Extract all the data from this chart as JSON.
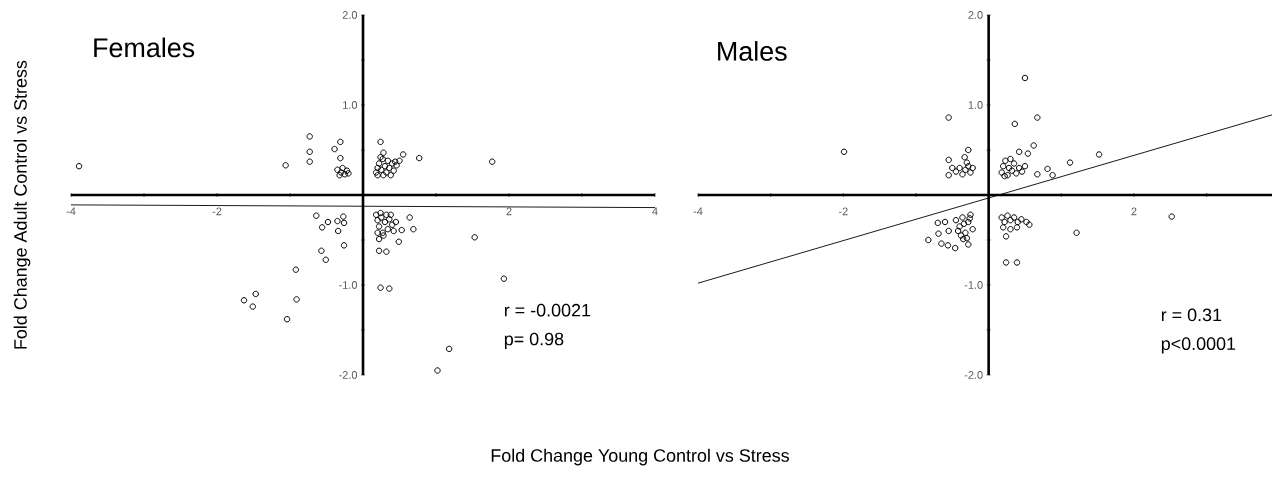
{
  "chart_data": [
    {
      "type": "scatter",
      "title": "Females",
      "xlabel": "Fold Change Young Control vs Stress",
      "ylabel": "Fold Change Adult Control vs Stress",
      "xlim": [
        -4,
        4
      ],
      "ylim": [
        -2,
        2
      ],
      "xticks": [
        -4,
        {
          "value": -3,
          "label": null
        },
        -2,
        {
          "value": -1,
          "label": null
        },
        {
          "value": 1,
          "label": null
        },
        2,
        {
          "value": 3,
          "label": null
        },
        4
      ],
      "yticks": [
        {
          "value": -2,
          "label": "-2.0"
        },
        {
          "value": -1.5,
          "label": null
        },
        {
          "value": -1,
          "label": "-1.0"
        },
        {
          "value": -0.5,
          "label": null
        },
        {
          "value": 0.5,
          "label": null
        },
        {
          "value": 1,
          "label": "1.0"
        },
        {
          "value": 1.5,
          "label": null
        },
        {
          "value": 2,
          "label": "2.0"
        }
      ],
      "annotations": [
        "r = -0.0021",
        "p= 0.98"
      ],
      "series": [
        {
          "marker": "circle",
          "color": "#000000",
          "x": [
            -3.89,
            -1.06,
            -0.73,
            -0.73,
            -0.73,
            -0.31,
            -0.39,
            -0.31,
            -0.35,
            -0.3,
            -0.25,
            -0.22,
            -0.28,
            -0.2,
            -0.32,
            0.24,
            0.28,
            0.18,
            0.2,
            0.22,
            0.25,
            0.27,
            0.3,
            0.32,
            0.34,
            0.36,
            0.4,
            0.42,
            0.2,
            0.28,
            0.24,
            0.46,
            0.5,
            0.55,
            0.77,
            0.44,
            0.38,
            1.77,
            -0.64,
            -0.56,
            -0.48,
            -0.35,
            -0.34,
            -0.27,
            -0.26,
            -0.26,
            -0.57,
            -0.51,
            -0.92,
            -0.91,
            -1.63,
            -1.47,
            -1.51,
            -1.04,
            0.18,
            0.2,
            0.22,
            0.25,
            0.27,
            0.3,
            0.32,
            0.34,
            0.36,
            0.4,
            0.42,
            0.2,
            0.28,
            0.45,
            0.24,
            0.38,
            0.64,
            0.69,
            0.53,
            0.49,
            0.22,
            0.22,
            0.32,
            0.24,
            0.36,
            1.53,
            1.93,
            1.18,
            1.02
          ],
          "values": [
            0.32,
            0.33,
            0.65,
            0.48,
            0.37,
            0.59,
            0.51,
            0.41,
            0.28,
            0.25,
            0.23,
            0.27,
            0.3,
            0.24,
            0.22,
            0.59,
            0.47,
            0.25,
            0.3,
            0.35,
            0.28,
            0.4,
            0.32,
            0.25,
            0.38,
            0.3,
            0.35,
            0.27,
            0.22,
            0.22,
            0.42,
            0.33,
            0.38,
            0.45,
            0.41,
            0.37,
            0.22,
            0.37,
            -0.23,
            -0.36,
            -0.3,
            -0.29,
            -0.4,
            -0.24,
            -0.31,
            -0.56,
            -0.62,
            -0.72,
            -0.83,
            -1.16,
            -1.17,
            -1.1,
            -1.24,
            -1.38,
            -0.22,
            -0.28,
            -0.35,
            -0.25,
            -0.42,
            -0.3,
            -0.22,
            -0.38,
            -0.27,
            -0.33,
            -0.4,
            -0.42,
            -0.45,
            -0.3,
            -0.2,
            -0.22,
            -0.25,
            -0.38,
            -0.39,
            -0.52,
            -0.49,
            -0.62,
            -0.63,
            -1.03,
            -1.04,
            -0.47,
            -0.93,
            -1.71,
            -1.95
          ]
        },
        {
          "type": "line",
          "marker": "none",
          "color": "#000000",
          "x": [
            -4,
            4
          ],
          "values": [
            -0.11,
            -0.14
          ]
        }
      ]
    },
    {
      "type": "scatter",
      "title": "Males",
      "xlim": [
        -4,
        3.9
      ],
      "ylim": [
        -2,
        2
      ],
      "xticks": [
        -4,
        {
          "value": -3,
          "label": null
        },
        -2,
        {
          "value": -1,
          "label": null
        },
        {
          "value": 1,
          "label": null
        },
        2,
        {
          "value": 3,
          "label": null
        }
      ],
      "yticks": [
        {
          "value": -2,
          "label": "-2.0"
        },
        {
          "value": -1.5,
          "label": null
        },
        {
          "value": -1,
          "label": "-1.0"
        },
        {
          "value": -0.5,
          "label": null
        },
        {
          "value": 0.5,
          "label": null
        },
        {
          "value": 1,
          "label": "1.0"
        },
        {
          "value": 1.5,
          "label": null
        },
        {
          "value": 2,
          "label": "2.0"
        }
      ],
      "annotations": [
        "r = 0.31",
        "p<0.0001"
      ],
      "series": [
        {
          "marker": "circle",
          "color": "#000000",
          "x": [
            -1.99,
            -0.55,
            0.5,
            0.36,
            0.67,
            0.62,
            0.54,
            0.42,
            1.12,
            1.52,
            0.81,
            0.88,
            0.67,
            0.18,
            0.2,
            0.23,
            0.26,
            0.28,
            0.32,
            0.35,
            0.38,
            0.42,
            0.46,
            0.5,
            0.3,
            0.22,
            -0.28,
            -0.55,
            -0.55,
            -0.33,
            -0.45,
            -0.4,
            -0.36,
            -0.32,
            -0.28,
            -0.25,
            -0.22,
            -0.3,
            -0.5,
            -0.83,
            -0.7,
            -0.69,
            -0.65,
            -0.56,
            -0.46,
            -0.28,
            -0.35,
            -0.45,
            -0.4,
            -0.36,
            -0.32,
            -0.28,
            -0.25,
            -0.22,
            -0.3,
            -0.38,
            -0.42,
            -0.26,
            -0.34,
            -0.6,
            -0.55,
            0.18,
            0.22,
            0.26,
            0.3,
            0.35,
            0.4,
            0.45,
            0.52,
            0.56,
            0.2,
            0.3,
            0.24,
            0.39,
            0.24,
            0.39,
            1.21,
            2.52
          ],
          "values": [
            0.48,
            0.86,
            1.3,
            0.79,
            0.86,
            0.55,
            0.46,
            0.48,
            0.36,
            0.45,
            0.29,
            0.22,
            0.23,
            0.25,
            0.32,
            0.38,
            0.22,
            0.3,
            0.27,
            0.35,
            0.24,
            0.3,
            0.26,
            0.32,
            0.4,
            0.21,
            0.5,
            0.39,
            0.22,
            0.42,
            0.26,
            0.3,
            0.23,
            0.28,
            0.32,
            0.25,
            0.3,
            0.36,
            0.3,
            -0.5,
            -0.31,
            -0.43,
            -0.54,
            -0.56,
            -0.59,
            -0.55,
            -0.49,
            -0.28,
            -0.35,
            -0.25,
            -0.42,
            -0.3,
            -0.22,
            -0.38,
            -0.48,
            -0.45,
            -0.4,
            -0.26,
            -0.32,
            -0.3,
            -0.4,
            -0.25,
            -0.3,
            -0.23,
            -0.28,
            -0.25,
            -0.3,
            -0.27,
            -0.3,
            -0.33,
            -0.36,
            -0.38,
            -0.46,
            -0.36,
            -0.75,
            -0.75,
            -0.42,
            -0.24
          ]
        },
        {
          "type": "line",
          "marker": "none",
          "color": "#000000",
          "x": [
            -4,
            3.9
          ],
          "values": [
            -0.98,
            0.89
          ]
        }
      ]
    }
  ]
}
